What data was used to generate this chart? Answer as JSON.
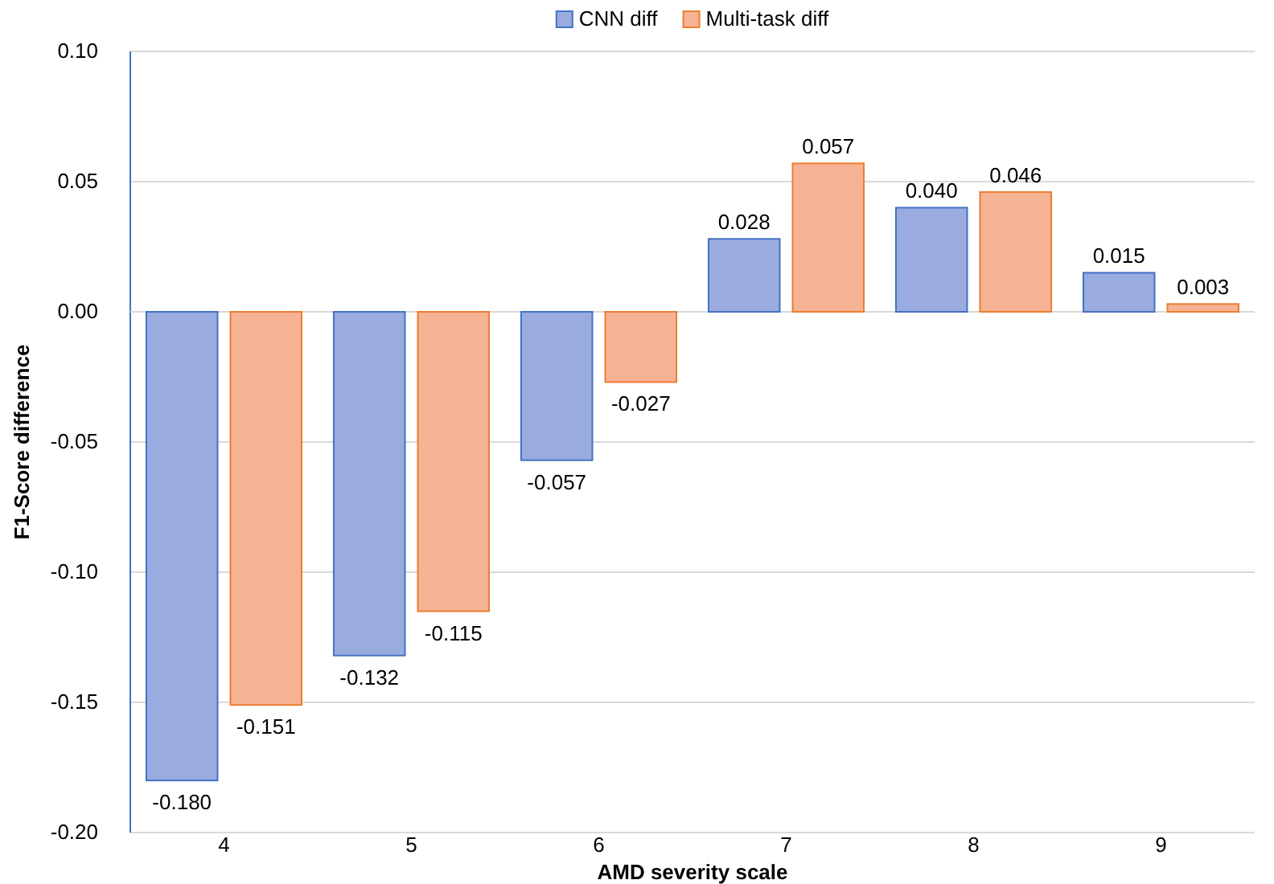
{
  "chart_data": {
    "type": "bar",
    "xlabel": "AMD severity scale",
    "ylabel": "F1-Score difference",
    "categories": [
      "4",
      "5",
      "6",
      "7",
      "8",
      "9"
    ],
    "series": [
      {
        "name": "CNN diff",
        "color": "#9aabdf",
        "values": [
          -0.18,
          -0.132,
          -0.057,
          0.028,
          0.04,
          0.015
        ],
        "value_labels": [
          "-0.180",
          "-0.132",
          "-0.057",
          "0.028",
          "0.040",
          "0.015"
        ]
      },
      {
        "name": "Multi-task diff",
        "color": "#f6b393",
        "values": [
          -0.151,
          -0.115,
          -0.027,
          0.057,
          0.046,
          0.003
        ],
        "value_labels": [
          "-0.151",
          "-0.115",
          "-0.027",
          "0.057",
          "0.046",
          "0.003"
        ]
      }
    ],
    "ylim": [
      -0.2,
      0.1
    ],
    "yticks": [
      {
        "value": -0.2,
        "label": "-0.20"
      },
      {
        "value": -0.15,
        "label": "-0.15"
      },
      {
        "value": -0.1,
        "label": "-0.10"
      },
      {
        "value": -0.05,
        "label": "-0.05"
      },
      {
        "value": 0,
        "label": "0.00"
      },
      {
        "value": 0.05,
        "label": "0.05"
      },
      {
        "value": 0.1,
        "label": "0.10"
      }
    ],
    "grid": true,
    "legend": "top"
  }
}
